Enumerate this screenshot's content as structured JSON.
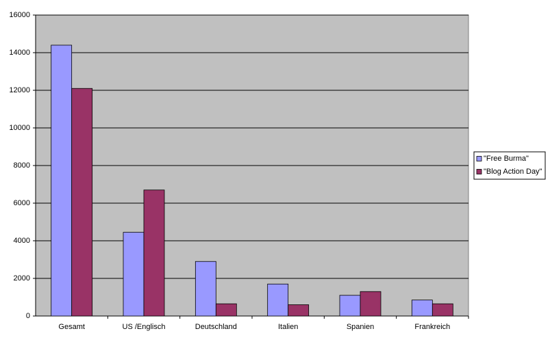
{
  "chart_data": {
    "type": "bar",
    "categories": [
      "Gesamt",
      "US /Englisch",
      "Deutschland",
      "Italien",
      "Spanien",
      "Frankreich"
    ],
    "series": [
      {
        "name": "\"Free Burma\"",
        "color": "#9999ff",
        "values": [
          14400,
          4450,
          2900,
          1700,
          1100,
          850
        ]
      },
      {
        "name": "\"Blog Action Day\"",
        "color": "#993366",
        "values": [
          12100,
          6700,
          650,
          600,
          1300,
          650
        ]
      }
    ],
    "ylim": [
      0,
      16000
    ],
    "yticks": [
      0,
      2000,
      4000,
      6000,
      8000,
      10000,
      12000,
      14000,
      16000
    ],
    "grid": true,
    "legend": "right"
  }
}
